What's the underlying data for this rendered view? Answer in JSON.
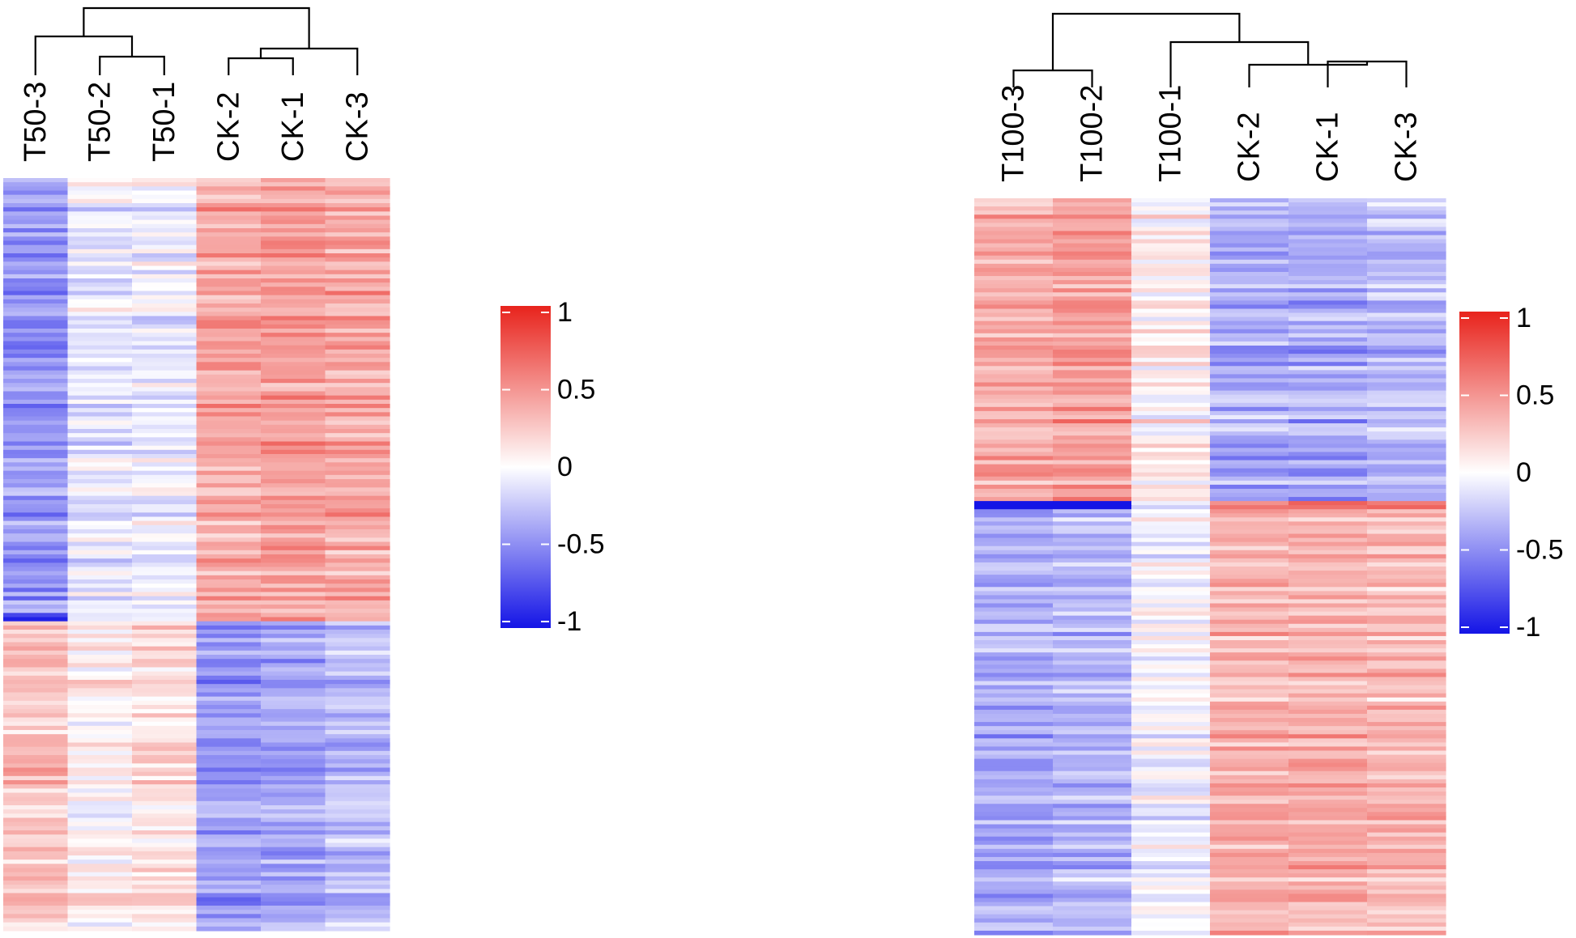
{
  "chart_data": [
    {
      "type": "heatmap",
      "title": "",
      "columns": [
        "T50-3",
        "T50-2",
        "T50-1",
        "CK-2",
        "CK-1",
        "CK-3"
      ],
      "value_range": [
        -1,
        1
      ],
      "colorbar": {
        "ticks": [
          1,
          0.5,
          0,
          -0.5,
          -1
        ],
        "tick_labels": [
          "1",
          "0.5",
          "0",
          "-0.5",
          "-1"
        ],
        "colors": {
          "low": "#1414e6",
          "mid": "#ffffff",
          "high": "#e8231c"
        }
      },
      "dendrogram_merges": [
        [
          "T50-2",
          "T50-1"
        ],
        [
          "T50-3",
          "T50-2+T50-1"
        ],
        [
          "CK-2",
          "CK-1"
        ],
        [
          "CK-2+CK-1",
          "CK-3"
        ],
        [
          "T50 group",
          "CK group"
        ]
      ],
      "row_block_pattern": [
        {
          "rows_fraction": 0.58,
          "values": [
            -0.45,
            -0.1,
            -0.08,
            0.4,
            0.45,
            0.4
          ]
        },
        {
          "rows_fraction": 0.01,
          "values": [
            -1,
            -0.2,
            0.0,
            0.55,
            0.6,
            0.5
          ]
        },
        {
          "rows_fraction": 0.41,
          "values": [
            0.3,
            0.08,
            0.18,
            -0.45,
            -0.42,
            -0.3
          ]
        }
      ]
    },
    {
      "type": "heatmap",
      "title": "",
      "columns": [
        "T100-3",
        "T100-2",
        "T100-1",
        "CK-2",
        "CK-1",
        "CK-3"
      ],
      "value_range": [
        -1,
        1
      ],
      "colorbar": {
        "ticks": [
          1,
          0.5,
          0,
          -0.5,
          -1
        ],
        "tick_labels": [
          "1",
          "0.5",
          "0",
          "-0.5",
          "-1"
        ],
        "colors": {
          "low": "#1414e6",
          "mid": "#ffffff",
          "high": "#e8231c"
        }
      },
      "dendrogram_merges": [
        [
          "T100-3",
          "T100-2"
        ],
        [
          "CK-1",
          "CK-3"
        ],
        [
          "CK-2",
          "CK-1+CK-3"
        ],
        [
          "T100-1",
          "CK group"
        ],
        [
          "T100-3+T100-2",
          "T100-1+CK group"
        ]
      ],
      "row_block_pattern": [
        {
          "rows_fraction": 0.41,
          "values": [
            0.4,
            0.45,
            0.08,
            -0.35,
            -0.38,
            -0.3
          ]
        },
        {
          "rows_fraction": 0.01,
          "values": [
            -1,
            -1,
            -0.1,
            0.55,
            0.6,
            0.5
          ]
        },
        {
          "rows_fraction": 0.58,
          "values": [
            -0.35,
            -0.3,
            -0.03,
            0.35,
            0.35,
            0.3
          ]
        }
      ]
    }
  ]
}
